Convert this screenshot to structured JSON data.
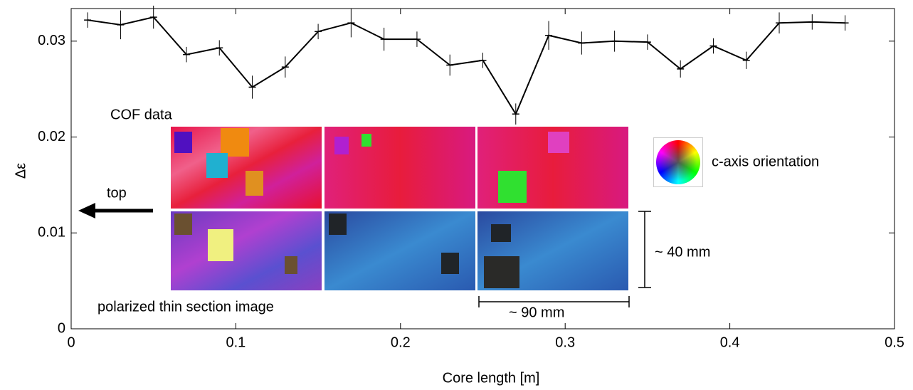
{
  "chart_data": {
    "type": "line",
    "x_label": "Core length [m]",
    "y_label": "Δε",
    "x": [
      0.01,
      0.03,
      0.05,
      0.07,
      0.09,
      0.11,
      0.13,
      0.15,
      0.17,
      0.19,
      0.21,
      0.23,
      0.25,
      0.27,
      0.29,
      0.31,
      0.33,
      0.35,
      0.37,
      0.39,
      0.41,
      0.43,
      0.45,
      0.47
    ],
    "values": [
      0.0322,
      0.0317,
      0.0325,
      0.0286,
      0.0293,
      0.0252,
      0.0273,
      0.031,
      0.0319,
      0.0302,
      0.0302,
      0.0275,
      0.028,
      0.0224,
      0.0306,
      0.0298,
      0.03,
      0.0299,
      0.0271,
      0.0295,
      0.028,
      0.0319,
      0.032,
      0.0319
    ],
    "errors": [
      0.0008,
      0.0015,
      0.0012,
      0.0008,
      0.0008,
      0.0012,
      0.0011,
      0.0008,
      0.0015,
      0.0012,
      0.0008,
      0.0011,
      0.0008,
      0.0011,
      0.0015,
      0.0012,
      0.0011,
      0.0008,
      0.0009,
      0.0008,
      0.0009,
      0.0011,
      0.0008,
      0.0008
    ],
    "color": "#000000",
    "xlim": [
      0,
      0.5
    ],
    "xticks": [
      0,
      0.1,
      0.2,
      0.3,
      0.4,
      0.5
    ],
    "ylim": [
      0,
      0.0334
    ],
    "yticks": [
      0,
      0.01,
      0.02,
      0.03
    ],
    "annotations": {
      "cof": "COF data",
      "top": "top",
      "polarized": "polarized thin section image",
      "height": "~ 40 mm",
      "width": "~ 90 mm",
      "orientation": "c-axis orientation"
    }
  }
}
